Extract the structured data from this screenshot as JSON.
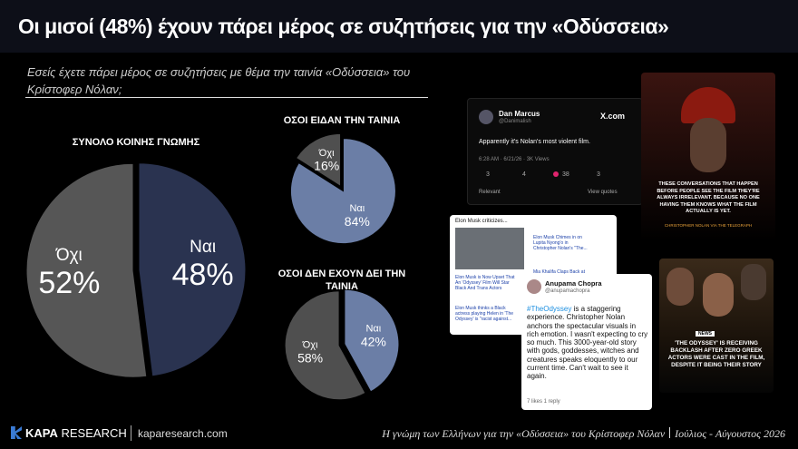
{
  "title": "Οι μισοί (48%) έχουν πάρει μέρος σε συζητήσεις για την «Οδύσσεια»",
  "question": "Εσείς έχετε πάρει μέρος σε συζητήσεις με θέμα την ταινία «Οδύσσεια» του Κρίστοφερ Νόλαν;",
  "chart_data": [
    {
      "type": "pie",
      "title": "ΣΥΝΟΛΟ ΚΟΙΝΗΣ ΓΝΩΜΗΣ",
      "categories": [
        "Ναι",
        "Όχι"
      ],
      "values": [
        48,
        52
      ],
      "value_labels": [
        "48%",
        "52%"
      ],
      "colors": [
        "#2a3350",
        "#565656"
      ]
    },
    {
      "type": "pie",
      "title": "ΟΣΟΙ ΕΙΔΑΝ ΤΗΝ ΤΑΙΝΙΑ",
      "categories": [
        "Ναι",
        "Όχι"
      ],
      "values": [
        84,
        16
      ],
      "value_labels": [
        "84%",
        "16%"
      ],
      "colors": [
        "#6b7ea6",
        "#4f4f4f"
      ]
    },
    {
      "type": "pie",
      "title": "ΟΣΟΙ ΔΕΝ ΕΧΟΥΝ ΔΕΙ ΤΗΝ ΤΑΙΝΙΑ",
      "categories": [
        "Ναι",
        "Όχι"
      ],
      "values": [
        42,
        58
      ],
      "value_labels": [
        "42%",
        "58%"
      ],
      "colors": [
        "#6b7ea6",
        "#4f4f4f"
      ]
    }
  ],
  "posts": {
    "tweet1": {
      "name": "Dan Marcus",
      "handle": "@Danimalish",
      "site": "X.com",
      "text": "Apparently it's Nolan's most violent film.",
      "meta": "6:28 AM · 6/21/26 · 3K Views",
      "replies": "3",
      "reposts": "4",
      "likes": "38",
      "bookmarks": "3",
      "left": "Relevant",
      "right": "View quotes"
    },
    "image1": {
      "caption": "THESE CONVERSATIONS THAT HAPPEN BEFORE PEOPLE SEE THE FILM THEY'RE ALWAYS IRRELEVANT. BECAUSE NO ONE HAVING THEM KNOWS WHAT THE FILM ACTUALLY IS YET.",
      "credit": "CHRISTOPHER NOLAN VIA THE TELEGRAPH"
    },
    "news": {
      "header": "Elon Musk criticizes...",
      "item1": "Elon Musk Chimes in on Lupita Nyong'o in Christopher Nolan's \"The...",
      "item2": "Elon Musk is Now Upset That An 'Odyssey' Film Will Star Black And Trans Actors",
      "item3": "Elon Musk thinks a Black actress playing Helen in 'The Odyssey' is \"racist against...",
      "item4": "Mia Khalifa Claps Back at"
    },
    "tweet2": {
      "name": "Anupama Chopra",
      "handle": "@anupamachopra",
      "hashtag": "#TheOdyssey",
      "text": " is a staggering experience. Christopher Nolan anchors the spectacular visuals in rich emotion. I wasn't expecting to cry so much. This 3000-year-old story with gods, goddesses, witches and creatures speaks eloquently to our current time. Can't wait to see it again.",
      "meta": "7 likes 1 reply"
    },
    "image2": {
      "tag": "NEWS",
      "caption": "'THE ODYSSEY' IS RECEIVING BACKLASH AFTER ZERO GREEK ACTORS WERE CAST IN THE FILM, DESPITE IT BEING THEIR STORY"
    }
  },
  "footer": {
    "logo_bold": "KAPA",
    "logo_rest": "RESEARCH",
    "website": "kaparesearch.com",
    "note": "Η γνώμη των Ελλήνων για την «Οδύσσεια» του Κρίστοφερ Νόλαν",
    "date": "Ιούλιος - Αύγουστος 2026"
  }
}
